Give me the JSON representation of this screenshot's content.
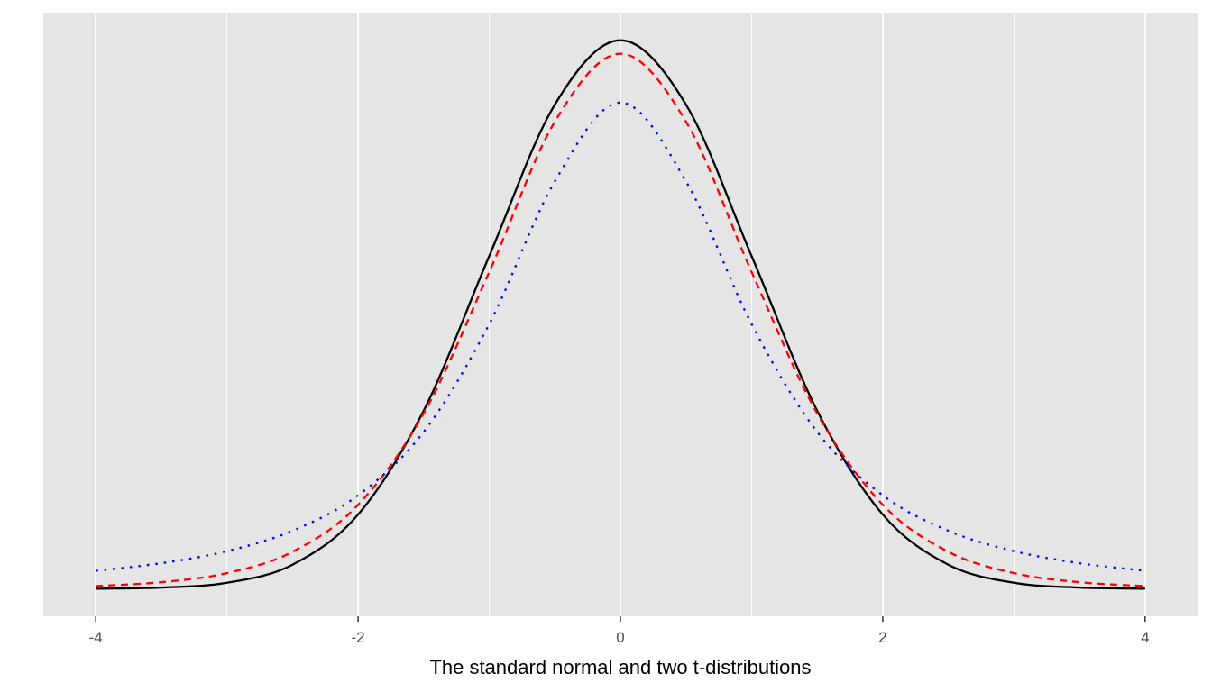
{
  "chart_data": {
    "type": "line",
    "title": "",
    "xlabel": "The standard normal and two t-distributions",
    "ylabel": "",
    "xlim": [
      -4.4,
      4.4
    ],
    "ylim": [
      -0.02,
      0.419
    ],
    "x_ticks": [
      -4,
      -2,
      0,
      2,
      4
    ],
    "x_tick_labels": [
      "-4",
      "-2",
      "0",
      "2",
      "4"
    ],
    "x_minor_grid": [
      -3,
      -1,
      1,
      3
    ],
    "y_axis_shown": false,
    "grid": "vertical only",
    "panel_background": "#e5e5e5",
    "grid_color": "#ffffff",
    "legend": "none",
    "x": [
      -4,
      -3.5,
      -3,
      -2.5,
      -2,
      -1.5,
      -1,
      -0.5,
      0,
      0.5,
      1,
      1.5,
      2,
      2.5,
      3,
      3.5,
      4
    ],
    "series": [
      {
        "color": "#000000",
        "linetype": "solid",
        "values": [
          0.0001,
          0.0009,
          0.0044,
          0.0175,
          0.054,
          0.1295,
          0.242,
          0.3521,
          0.3989,
          0.3521,
          0.242,
          0.1295,
          0.054,
          0.0175,
          0.0044,
          0.0009,
          0.0001
        ]
      },
      {
        "color": "#ff0000",
        "linetype": "dashed",
        "values": [
          0.002,
          0.0048,
          0.0114,
          0.0269,
          0.0611,
          0.1275,
          0.2304,
          0.3397,
          0.3891,
          0.3397,
          0.2304,
          0.1275,
          0.0611,
          0.0269,
          0.0114,
          0.0048,
          0.002
        ]
      },
      {
        "color": "#0000ff",
        "linetype": "dotted",
        "values": [
          0.0131,
          0.0186,
          0.0274,
          0.0422,
          0.068,
          0.1141,
          0.1925,
          0.2963,
          0.3536,
          0.2963,
          0.1925,
          0.1141,
          0.068,
          0.0422,
          0.0274,
          0.0186,
          0.0131
        ]
      }
    ]
  }
}
